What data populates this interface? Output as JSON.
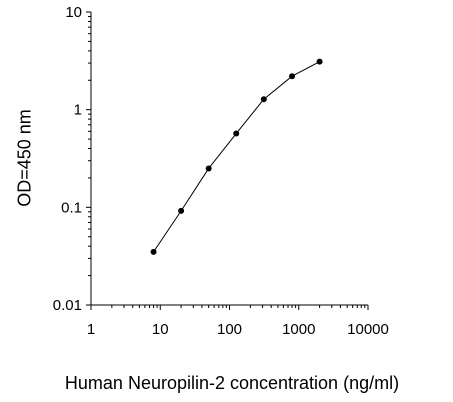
{
  "chart_data": {
    "type": "scatter",
    "scale": "log-log",
    "xlabel": "Human Neuropilin-2 concentration (ng/ml)",
    "ylabel": "OD=450 nm",
    "xlim": [
      1,
      10000
    ],
    "ylim": [
      0.01,
      10
    ],
    "x_ticks": [
      "1",
      "10",
      "100",
      "1000",
      "10000"
    ],
    "y_ticks": [
      "0.01",
      "0.1",
      "1",
      "10"
    ],
    "grid": false,
    "legend": "none",
    "series": [
      {
        "x": [
          8,
          20,
          50,
          125,
          313,
          800,
          2000
        ],
        "y": [
          0.035,
          0.092,
          0.25,
          0.57,
          1.28,
          2.2,
          3.1
        ],
        "line": true,
        "marker": "circle",
        "color": "#000000"
      }
    ]
  }
}
